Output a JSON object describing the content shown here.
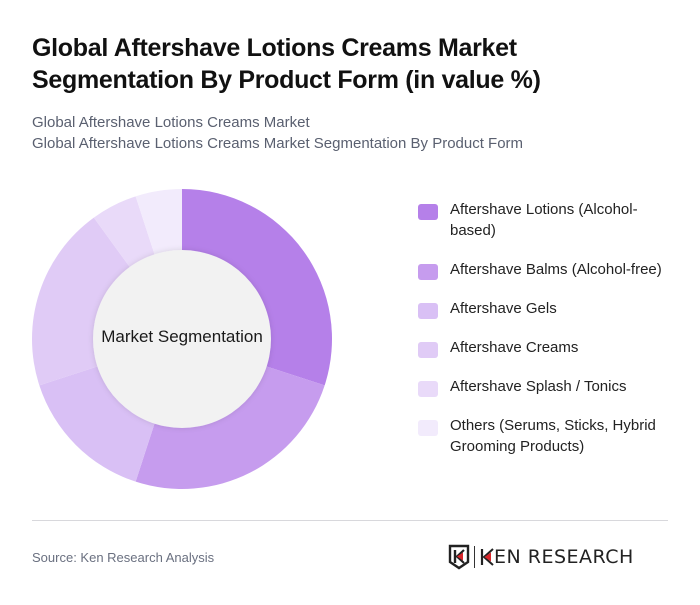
{
  "header": {
    "title": "Global Aftershave Lotions Creams Market Segmentation By Product Form (in value %)",
    "subtitle_line1": "Global Aftershave Lotions Creams Market",
    "subtitle_line2": "Global Aftershave Lotions Creams Market Segmentation By Product Form"
  },
  "chart": {
    "center_label": "Market Segmentation"
  },
  "chart_data": {
    "type": "pie",
    "subtype": "donut",
    "title": "Global Aftershave Lotions Creams Market Segmentation By Product Form (in value %)",
    "center_label": "Market Segmentation",
    "categories": [
      "Aftershave Lotions (Alcohol-based)",
      "Aftershave Balms (Alcohol-free)",
      "Aftershave Gels",
      "Aftershave Creams",
      "Aftershave Splash / Tonics",
      "Others (Serums, Sticks, Hybrid Grooming Products)"
    ],
    "values": [
      30,
      25,
      15,
      20,
      5,
      5
    ],
    "colors": [
      "#B580E9",
      "#C69CEE",
      "#D9C0F5",
      "#E0CBF6",
      "#E9DAF9",
      "#F2EBFC"
    ],
    "legend_position": "right",
    "unit": "%"
  },
  "legend": {
    "items": [
      {
        "label": "Aftershave Lotions (Alcohol-based)",
        "color": "#B580E9"
      },
      {
        "label": "Aftershave Balms (Alcohol-free)",
        "color": "#C69CEE"
      },
      {
        "label": "Aftershave Gels",
        "color": "#D9C0F5"
      },
      {
        "label": "Aftershave Creams",
        "color": "#E0CBF6"
      },
      {
        "label": "Aftershave Splash / Tonics",
        "color": "#E9DAF9"
      },
      {
        "label": "Others (Serums, Sticks, Hybrid Grooming Products)",
        "color": "#F2EBFC"
      }
    ]
  },
  "footer": {
    "source": "Source: Ken Research Analysis",
    "logo_text": "KEN RESEARCH"
  }
}
